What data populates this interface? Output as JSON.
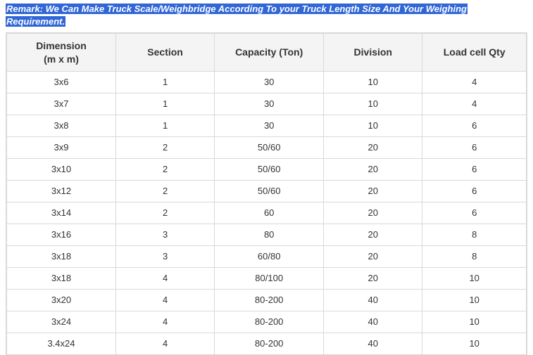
{
  "remark": {
    "line1": "Remark: We Can Make Truck Scale/Weighbridge According To your Truck Length Size And Your Weighing",
    "line2": "Requirement.",
    "highlight_bg": "#3066d6",
    "highlight_fg": "#ffffff"
  },
  "table": {
    "type": "table",
    "border_color": "#d9d9d9",
    "header_bg": "#f4f4f4",
    "text_color": "#333333",
    "header_fontsize": 14,
    "cell_fontsize": 13,
    "columns": [
      {
        "label_line1": "Dimension",
        "label_line2": "(m x m)",
        "width_pct": 21
      },
      {
        "label_line1": "Section",
        "label_line2": "",
        "width_pct": 19
      },
      {
        "label_line1": "Capacity (Ton)",
        "label_line2": "",
        "width_pct": 21
      },
      {
        "label_line1": "Division",
        "label_line2": "",
        "width_pct": 19
      },
      {
        "label_line1": "Load cell Qty",
        "label_line2": "",
        "width_pct": 20
      }
    ],
    "rows": [
      [
        "3x6",
        "1",
        "30",
        "10",
        "4"
      ],
      [
        "3x7",
        "1",
        "30",
        "10",
        "4"
      ],
      [
        "3x8",
        "1",
        "30",
        "10",
        "6"
      ],
      [
        "3x9",
        "2",
        "50/60",
        "20",
        "6"
      ],
      [
        "3x10",
        "2",
        "50/60",
        "20",
        "6"
      ],
      [
        "3x12",
        "2",
        "50/60",
        "20",
        "6"
      ],
      [
        "3x14",
        "2",
        "60",
        "20",
        "6"
      ],
      [
        "3x16",
        "3",
        "80",
        "20",
        "8"
      ],
      [
        "3x18",
        "3",
        "60/80",
        "20",
        "8"
      ],
      [
        "3x18",
        "4",
        "80/100",
        "20",
        "10"
      ],
      [
        "3x20",
        "4",
        "80-200",
        "40",
        "10"
      ],
      [
        "3x24",
        "4",
        "80-200",
        "40",
        "10"
      ],
      [
        "3.4x24",
        "4",
        "80-200",
        "40",
        "10"
      ]
    ]
  }
}
